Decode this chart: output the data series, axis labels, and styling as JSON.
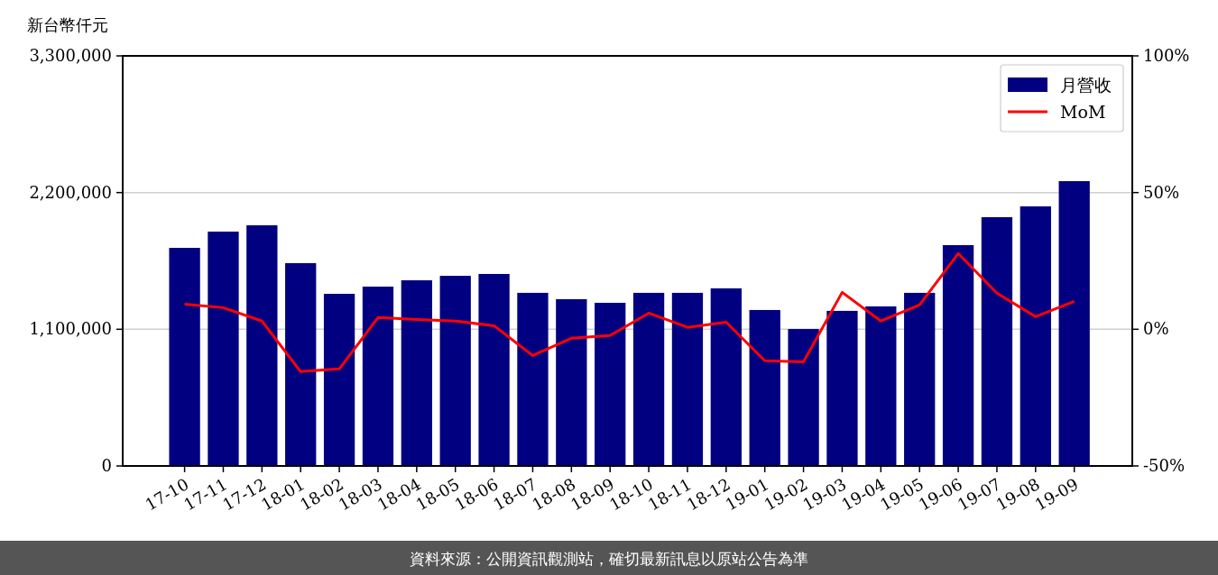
{
  "chart_data": {
    "type": "bar",
    "ylabel": "新台幣仟元",
    "categories": [
      "17-10",
      "17-11",
      "17-12",
      "18-01",
      "18-02",
      "18-03",
      "18-04",
      "18-05",
      "18-06",
      "18-07",
      "18-08",
      "18-09",
      "18-10",
      "18-11",
      "18-12",
      "19-01",
      "19-02",
      "19-03",
      "19-04",
      "19-05",
      "19-06",
      "19-07",
      "19-08",
      "19-09"
    ],
    "series": [
      {
        "name": "月營收",
        "color": "#000080",
        "values": [
          1755000,
          1886000,
          1937000,
          1632000,
          1385000,
          1443000,
          1494000,
          1530000,
          1545000,
          1393000,
          1342000,
          1313000,
          1393000,
          1393000,
          1429000,
          1255000,
          1102000,
          1248000,
          1284000,
          1393000,
          1777000,
          2002000,
          2089000,
          2292000
        ]
      },
      {
        "name": "MoM",
        "type": "line",
        "axis": "y2",
        "color": "#ff0000",
        "values": [
          9.2,
          7.9,
          3.0,
          -15.5,
          -14.5,
          4.3,
          3.6,
          3.0,
          1.3,
          -9.6,
          -3.3,
          -2.3,
          5.9,
          0.7,
          2.6,
          -11.5,
          -11.9,
          13.5,
          3.0,
          8.9,
          27.7,
          13.2,
          4.6,
          10.2
        ]
      }
    ],
    "ylim": [
      0,
      3300000
    ],
    "yticks": [
      0,
      {
        "value": 1100000,
        "label": "1,100,000"
      },
      {
        "value": 2200000,
        "label": "2,200,000"
      },
      {
        "value": 3300000,
        "label": "3,300,000"
      }
    ],
    "y2lim": [
      -50,
      100
    ],
    "y2ticks": [
      {
        "value": -50,
        "label": "-50%"
      },
      {
        "value": 0,
        "label": "0%"
      },
      {
        "value": 50,
        "label": "50%"
      },
      {
        "value": 100,
        "label": "100%"
      }
    ],
    "grid": "y",
    "legend": "top right",
    "annotations": [
      "資料來源：公開資訊觀測站，確切最新訊息以原站公告為準"
    ]
  }
}
